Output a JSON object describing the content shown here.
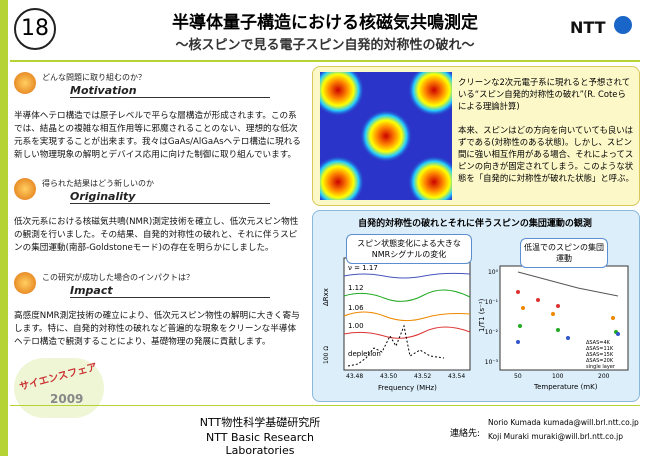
{
  "header": {
    "number": "18",
    "title": "半導体量子構造における核磁気共鳴測定",
    "subtitle": "～核スピンで見る電子スピン自発的対称性の破れ～",
    "logo": "NTT"
  },
  "sections": [
    {
      "question": "どんな問題に取り組むのか？",
      "heading": "Motivation",
      "body": "半導体ヘテロ構造では原子レベルで平らな層構造が形成されます。この系では、結晶との複雑な相互作用等に邪魔されることのない、理想的な低次元系を実現することが出来ます。我々はGaAs/AlGaAsヘテロ構造に現れる新しい物理現象の解明とデバイス応用に向けた制御に取り組んでいます。"
    },
    {
      "question": "得られた結果はどう新しいのか",
      "heading": "Originality",
      "body": "低次元系における核磁気共鳴(NMR)測定技術を確立し、低次元スピン物性の観測を行いました。その結果、自発的対称性の破れと、それに伴うスピンの集団運動(南部-Goldstoneモード)の存在を明らかにしました。"
    },
    {
      "question": "この研究が成功した場合のインパクトは？",
      "heading": "Impact",
      "body": "高感度NMR測定技術の確立により、低次元スピン物性の解明に大きく寄与します。特に、自発的対称性の破れなど普遍的な現象をクリーンな半導体ヘテロ構造で観測することにより、基礎物理の発展に貢献します。"
    }
  ],
  "theory": {
    "caption": "クリーンな2次元電子系に現れると予想されている“スピン自発的対称性の破れ”(R. Coteらによる理論計算)",
    "explanation": "本来、スピンはどの方向を向いていても良いはずである(対称性のある状態)。しかし、スピン間に強い相互作用がある場合、それによってスピンの向きが固定されてしまう。このような状態を「自発的に対称性が破れた状態」と呼ぶ。"
  },
  "observation": {
    "title": "自発的対称性の破れとそれに伴うスピンの集団運動の観測",
    "callout_left": "スピン状態変化による大きなNMRシグナルの変化",
    "callout_right": "低温でのスピンの集団運動",
    "left_plot": {
      "trace_labels": [
        "ν = 1.17",
        "1.12",
        "1.06",
        "1.00",
        "depletion"
      ],
      "y_label": "ΔRxx",
      "scale": "100 Ω",
      "x_ticks": [
        "43.48",
        "43.50",
        "43.52",
        "43.54"
      ],
      "x_label": "Frequency (MHz)"
    },
    "right_plot": {
      "y_label": "1/T1 (s⁻¹)",
      "y_ticks": [
        "10⁰",
        "10⁻¹",
        "10⁻²",
        "10⁻³"
      ],
      "x_ticks": [
        "50",
        "100",
        "200"
      ],
      "x_label": "Temperature (mK)",
      "legend": [
        "ΔSAS=4K",
        "ΔSAS=11K",
        "ΔSAS=15K",
        "ΔSAS=20K",
        "single layer"
      ]
    }
  },
  "fair": {
    "name": "サイエンスフェア",
    "year": "2009"
  },
  "footer": {
    "lab_ja": "NTT物性科学基礎研究所",
    "lab_en": "NTT Basic Research Laboratories",
    "contact_label": "連絡先:",
    "contacts": [
      "Norio Kumada  kumada@will.brl.ntt.co.jp",
      "Koji Muraki  muraki@will.brl.ntt.co.jp"
    ]
  }
}
